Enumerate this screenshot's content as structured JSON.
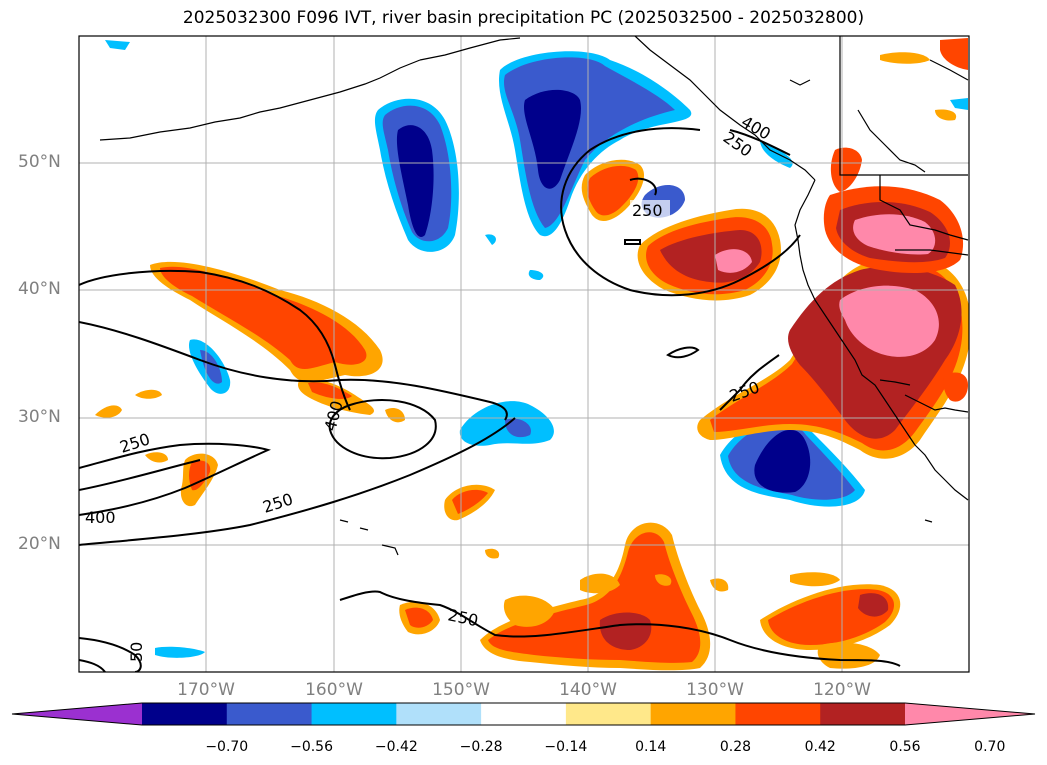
{
  "title": "2025032300 F096 IVT, river basin precipitation PC (2025032500 - 2025032800)",
  "lat_labels": [
    "50°N",
    "40°N",
    "30°N",
    "20°N"
  ],
  "lon_labels": [
    "170°W",
    "160°W",
    "150°W",
    "140°W",
    "130°W",
    "120°W"
  ],
  "contour_labels": [
    "250",
    "250",
    "250",
    "400",
    "400",
    "250",
    "250",
    "250",
    "400",
    "50"
  ],
  "colorbar": {
    "tick_labels": [
      "−0.70",
      "−0.56",
      "−0.42",
      "−0.28",
      "−0.14",
      "0.14",
      "0.28",
      "0.42",
      "0.56",
      "0.70"
    ],
    "colors": [
      "#9b30d0",
      "#00008b",
      "#3a5acd",
      "#00bfff",
      "#b0e0fa",
      "#ffffff",
      "#ffe88a",
      "#ffa500",
      "#ff4500",
      "#b22222",
      "#ff88aa"
    ]
  },
  "colors": {
    "grid": "#b0b0b0",
    "coast": "#000000",
    "tick_label": "#808080"
  }
}
